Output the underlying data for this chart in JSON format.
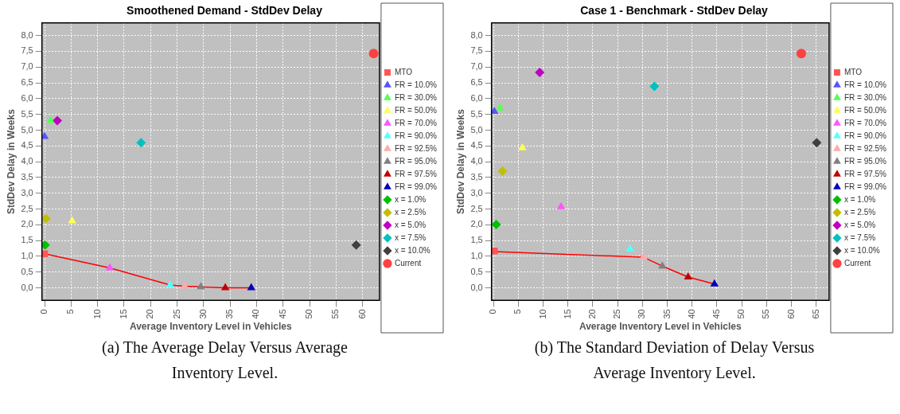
{
  "chart_data": [
    {
      "type": "scatter",
      "title": "Smoothened Demand - StdDev Delay",
      "xlabel": "Average Inventory Level in Vehicles",
      "ylabel": "StdDev Delay in Weeks",
      "xlim": [
        -0.5,
        63.2
      ],
      "ylim": [
        -0.4,
        8.4
      ],
      "xticks": [
        0,
        5,
        10,
        15,
        20,
        25,
        30,
        35,
        40,
        45,
        50,
        55,
        60
      ],
      "yticks": [
        {
          "value": 0,
          "label": "0,0"
        },
        {
          "value": 0.5,
          "label": "0,5"
        },
        {
          "value": 1,
          "label": "1,0"
        },
        {
          "value": 1.5,
          "label": "1,5"
        },
        {
          "value": 2,
          "label": "2,0"
        },
        {
          "value": 2.5,
          "label": "2,5"
        },
        {
          "value": 3,
          "label": "3,0"
        },
        {
          "value": 3.5,
          "label": "3,5"
        },
        {
          "value": 4,
          "label": "4,0"
        },
        {
          "value": 4.5,
          "label": "4,5"
        },
        {
          "value": 5,
          "label": "5,0"
        },
        {
          "value": 5.5,
          "label": "5,5"
        },
        {
          "value": 6,
          "label": "6,0"
        },
        {
          "value": 6.5,
          "label": "6,5"
        },
        {
          "value": 7,
          "label": "7,0"
        },
        {
          "value": 7.5,
          "label": "7,5"
        },
        {
          "value": 8,
          "label": "8,0"
        }
      ],
      "grid": true,
      "legend": "right",
      "annotations": [
        "(a) The Average Delay Versus Average Inventory Level."
      ],
      "series": [
        {
          "type": "line",
          "color": "#ff0000",
          "marker": "none",
          "x": [
            0,
            12.3,
            23.7,
            26.4,
            29.5,
            34.1,
            39.0
          ],
          "values": [
            1.08,
            0.63,
            0.09,
            0.05,
            0.03,
            0,
            0
          ]
        },
        {
          "name": "MTO",
          "color": "#ff5555",
          "marker": "square",
          "x": [
            0
          ],
          "values": [
            1.08
          ]
        },
        {
          "name": "FR = 10.0%",
          "color": "#5555ff",
          "marker": "triangle",
          "x": [
            0
          ],
          "values": [
            4.8
          ]
        },
        {
          "name": "FR = 30.0%",
          "color": "#55ff55",
          "marker": "triangle",
          "x": [
            1.1
          ],
          "values": [
            5.3
          ]
        },
        {
          "name": "FR = 50.0%",
          "color": "#ffff55",
          "marker": "triangle",
          "x": [
            5.2
          ],
          "values": [
            2.12
          ]
        },
        {
          "name": "FR = 70.0%",
          "color": "#ff55ff",
          "marker": "triangle",
          "x": [
            12.3
          ],
          "values": [
            0.63
          ]
        },
        {
          "name": "FR = 90.0%",
          "color": "#55ffff",
          "marker": "triangle",
          "x": [
            23.7
          ],
          "values": [
            0.09
          ]
        },
        {
          "name": "FR = 92.5%",
          "color": "#ffaaaa",
          "marker": "triangle",
          "x": [
            26.4
          ],
          "values": [
            0.05
          ]
        },
        {
          "name": "FR = 95.0%",
          "color": "#808080",
          "marker": "triangle",
          "x": [
            29.5
          ],
          "values": [
            0.03
          ]
        },
        {
          "name": "FR = 97.5%",
          "color": "#c00000",
          "marker": "triangle",
          "x": [
            34.1
          ],
          "values": [
            0
          ]
        },
        {
          "name": "FR = 99.0%",
          "color": "#0000c0",
          "marker": "triangle",
          "x": [
            39.0
          ],
          "values": [
            0
          ]
        },
        {
          "name": "x = 1.0%",
          "color": "#00c000",
          "marker": "diamond",
          "x": [
            0.1
          ],
          "values": [
            1.36
          ]
        },
        {
          "name": "x = 2.5%",
          "color": "#c0c000",
          "marker": "diamond",
          "x": [
            0.25
          ],
          "values": [
            2.2
          ]
        },
        {
          "name": "x = 5.0%",
          "color": "#c000c0",
          "marker": "diamond",
          "x": [
            2.4
          ],
          "values": [
            5.3
          ]
        },
        {
          "name": "x = 7.5%",
          "color": "#00c0c0",
          "marker": "diamond",
          "x": [
            18.2
          ],
          "values": [
            4.6
          ]
        },
        {
          "name": "x = 10.0%",
          "color": "#404040",
          "marker": "diamond",
          "x": [
            58.8
          ],
          "values": [
            1.36
          ]
        },
        {
          "name": "Current",
          "color": "#ff4040",
          "marker": "circle",
          "x": [
            62.1
          ],
          "values": [
            7.43
          ]
        }
      ]
    },
    {
      "type": "scatter",
      "title": "Case 1 - Benchmark - StdDev Delay",
      "xlabel": "Average Inventory Level in Vehicles",
      "ylabel": "StdDev Delay in Weeks",
      "xlim": [
        -0.4,
        67.6
      ],
      "ylim": [
        -0.4,
        8.4
      ],
      "xticks": [
        0,
        5,
        10,
        15,
        20,
        25,
        30,
        35,
        40,
        45,
        50,
        55,
        60,
        65
      ],
      "yticks": [
        {
          "value": 0,
          "label": "0,0"
        },
        {
          "value": 0.5,
          "label": "0,5"
        },
        {
          "value": 1,
          "label": "1,0"
        },
        {
          "value": 1.5,
          "label": "1,5"
        },
        {
          "value": 2,
          "label": "2,0"
        },
        {
          "value": 2.5,
          "label": "2,5"
        },
        {
          "value": 3,
          "label": "3,0"
        },
        {
          "value": 3.5,
          "label": "3,5"
        },
        {
          "value": 4,
          "label": "4,0"
        },
        {
          "value": 4.5,
          "label": "4,5"
        },
        {
          "value": 5,
          "label": "5,0"
        },
        {
          "value": 5.5,
          "label": "5,5"
        },
        {
          "value": 6,
          "label": "6,0"
        },
        {
          "value": 6.5,
          "label": "6,5"
        },
        {
          "value": 7,
          "label": "7,0"
        },
        {
          "value": 7.5,
          "label": "7,5"
        },
        {
          "value": 8,
          "label": "8,0"
        }
      ],
      "grid": true,
      "legend": "right",
      "annotations": [
        "(b) The Standard Deviation of Delay Versus Average Inventory Level."
      ],
      "series": [
        {
          "type": "line",
          "color": "#ff0000",
          "marker": "none",
          "x": [
            0.16,
            30.2,
            34.0,
            39.2,
            44.5
          ],
          "values": [
            1.15,
            0.97,
            0.69,
            0.34,
            0.12
          ]
        },
        {
          "name": "MTO",
          "color": "#ff5555",
          "marker": "square",
          "x": [
            0.16
          ],
          "values": [
            1.17
          ]
        },
        {
          "name": "FR = 10.0%",
          "color": "#5555ff",
          "marker": "triangle",
          "x": [
            0.16
          ],
          "values": [
            5.59
          ]
        },
        {
          "name": "FR = 30.0%",
          "color": "#55ff55",
          "marker": "triangle",
          "x": [
            1.3
          ],
          "values": [
            5.7
          ]
        },
        {
          "name": "FR = 50.0%",
          "color": "#ffff55",
          "marker": "triangle",
          "x": [
            5.8
          ],
          "values": [
            4.44
          ]
        },
        {
          "name": "FR = 70.0%",
          "color": "#ff55ff",
          "marker": "triangle",
          "x": [
            13.6
          ],
          "values": [
            2.57
          ]
        },
        {
          "name": "FR = 90.0%",
          "color": "#55ffff",
          "marker": "triangle",
          "x": [
            27.5
          ],
          "values": [
            1.23
          ]
        },
        {
          "name": "FR = 92.5%",
          "color": "#ffaaaa",
          "marker": "triangle",
          "x": [
            30.2
          ],
          "values": [
            0.97
          ]
        },
        {
          "name": "FR = 95.0%",
          "color": "#808080",
          "marker": "triangle",
          "x": [
            34.0
          ],
          "values": [
            0.69
          ]
        },
        {
          "name": "FR = 97.5%",
          "color": "#c00000",
          "marker": "triangle",
          "x": [
            39.2
          ],
          "values": [
            0.34
          ]
        },
        {
          "name": "FR = 99.0%",
          "color": "#0000c0",
          "marker": "triangle",
          "x": [
            44.5
          ],
          "values": [
            0.12
          ]
        },
        {
          "name": "x = 1.0%",
          "color": "#00c000",
          "marker": "diamond",
          "x": [
            0.54
          ],
          "values": [
            2.01
          ]
        },
        {
          "name": "x = 2.5%",
          "color": "#c0c000",
          "marker": "diamond",
          "x": [
            1.8
          ],
          "values": [
            3.7
          ]
        },
        {
          "name": "x = 5.0%",
          "color": "#c000c0",
          "marker": "diamond",
          "x": [
            9.3
          ],
          "values": [
            6.83
          ]
        },
        {
          "name": "x = 7.5%",
          "color": "#00c0c0",
          "marker": "diamond",
          "x": [
            32.4
          ],
          "values": [
            6.39
          ]
        },
        {
          "name": "x = 10.0%",
          "color": "#404040",
          "marker": "diamond",
          "x": [
            65.1
          ],
          "values": [
            4.6
          ]
        },
        {
          "name": "Current",
          "color": "#ff4040",
          "marker": "circle",
          "x": [
            62.0
          ],
          "values": [
            7.43
          ]
        }
      ]
    }
  ]
}
